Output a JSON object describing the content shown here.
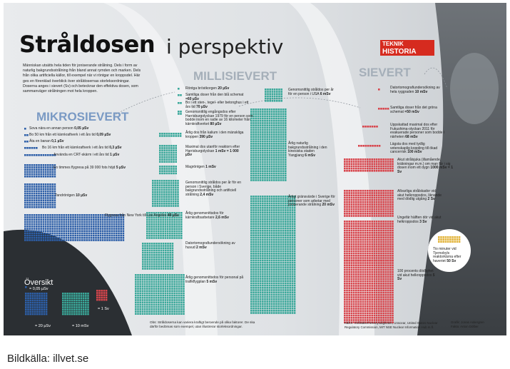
{
  "caption": "Bildkälla: illvet.se",
  "title": {
    "main": "Stråldosen",
    "sub": "i perspektiv"
  },
  "logo": {
    "line1": "TEKNIK",
    "line2": "HISTORIA"
  },
  "intro": "Människan utsätts hela tiden för joniserande strålning. Dels i form av naturlig bakgrundsstrålning från bland annat rymden och marken. Dels från olika artificiella källor, till exempel när vi röntgar en kroppsdel. Här ges en förenklad överblick över stråldosernas storleksordningar. Doserna anges i sievert (Sv) och betecknar den effektiva dosen, som sammanväger strålningen mot hela kroppen.",
  "sections": {
    "mikro": "MIKROSIEVERT",
    "milli": "MILLISIEVERT",
    "sievert": "SIEVERT"
  },
  "colors": {
    "mikro": "#2d5fa8",
    "milli": "#3aa89a",
    "sievert": "#d8454c",
    "gold": "#e2b43a",
    "dark": "#2b2f33"
  },
  "overview": {
    "title": "Översikt",
    "items": [
      {
        "label": "= 0,05 µSv"
      },
      {
        "label": "= 20 µSv"
      },
      {
        "label": "= 10 mSv"
      },
      {
        "label": "= 1 Sv"
      }
    ]
  },
  "chart_data": {
    "type": "table",
    "units": "sievert",
    "title": "Stråldosen i perspektiv",
    "groups": [
      {
        "name": "MIKROSIEVERT",
        "items": [
          {
            "text": "Sova nära en annan person",
            "value_text": "0,05 µSv",
            "value": 0.05,
            "unit": "µSv"
          },
          {
            "text": "Bo 50 km från ett kärnkraftverk i ett års tid",
            "value_text": "0,09 µSv",
            "value": 0.09,
            "unit": "µSv"
          },
          {
            "text": "Äta en banan",
            "value_text": "0,1 µSv",
            "value": 0.1,
            "unit": "µSv"
          },
          {
            "text": "Bo 16 km från ett kärnkraftverk i ett års tid",
            "value_text": "0,3 µSv",
            "value": 0.3,
            "unit": "µSv"
          },
          {
            "text": "Använda en CRT-skärm i ett års tid",
            "value_text": "1 µSv",
            "value": 1,
            "unit": "µSv"
          },
          {
            "text": "En timmes flygresa på 39 000 fots höjd",
            "value_text": "5 µSv",
            "value": 5,
            "unit": "µSv"
          },
          {
            "text": "Tandröntgen",
            "value_text": "10 µSv",
            "value": 10,
            "unit": "µSv"
          },
          {
            "text": "Flygresa från New York till Los Angeles",
            "value_text": "40 µSv",
            "value": 40,
            "unit": "µSv"
          }
        ]
      },
      {
        "name": "MILLISIEVERT",
        "items": [
          {
            "text": "Röntga bröstkorgen",
            "value_text": "20 µSv",
            "value": 20,
            "unit": "µSv"
          },
          {
            "text": "Samtliga doser från den blå schemat",
            "value_text": "=60 µSv",
            "value": 60,
            "unit": "µSv"
          },
          {
            "text": "Bo i ett sten-, tegel- eller betonghus i ett års tid",
            "value_text": "70 µSv",
            "value": 70,
            "unit": "µSv"
          },
          {
            "text": "Genomsnittlig engångsdos efter Harrisburgolyckan 1979 för en person som bodde inom en radie av 16 kilometer från kärnkraftverket",
            "value_text": "80 µSv",
            "value": 80,
            "unit": "µSv"
          },
          {
            "text": "Årlig dos från kalium i den mänskliga kroppen",
            "value_text": "390 µSv",
            "value": 390,
            "unit": "µSv"
          },
          {
            "text": "Maximal dos utanför reaktorn efter Harrisburgolyckan",
            "value_text": "1 mSv = 1 000 µSv",
            "value": 1,
            "unit": "mSv"
          },
          {
            "text": "Magröntgen",
            "value_text": "1 mSv",
            "value": 1,
            "unit": "mSv"
          },
          {
            "text": "Genomsnittlig stråldos per år för en person i Sverige, både bakgrundsstrålning och artificiell strålning",
            "value_text": "2,4 mSv",
            "value": 2.4,
            "unit": "mSv"
          },
          {
            "text": "Årlig genomsnittsdos för kärnkraftsarbetare",
            "value_text": "2,6 mSv",
            "value": 2.6,
            "unit": "mSv"
          },
          {
            "text": "Datortomografiundersökning av huvud",
            "value_text": "2 mSv",
            "value": 2,
            "unit": "mSv"
          },
          {
            "text": "Årlig genomsnittsdos för personal på trafikflygplan",
            "value_text": "5 mSv",
            "value": 5,
            "unit": "mSv"
          },
          {
            "text": "Genomsnittlig stråldos per år för en person i USA",
            "value_text": "6 mSv",
            "value": 6,
            "unit": "mSv"
          },
          {
            "text": "Årlig naturlig bakgrundsstrålning i den kinesiska staden Yangjiang",
            "value_text": "6 mSv",
            "value": 6,
            "unit": "mSv"
          },
          {
            "text": "Årligt gränsvärde i Sverige för personer som arbetar med joniserande strålning",
            "value_text": "20 mSv",
            "value": 20,
            "unit": "mSv"
          }
        ]
      },
      {
        "name": "SIEVERT",
        "items": [
          {
            "text": "Datortomografiundersökning av hela ryggraden",
            "value_text": "10 mSv",
            "value": 10,
            "unit": "mSv"
          },
          {
            "text": "Samtliga doser från det gröna schemat",
            "value_text": "=50 mSv",
            "value": 50,
            "unit": "mSv"
          },
          {
            "text": "Uppskattad maximal dos efter Fukushima-olyckan 2011 för evakuerade personer som bodde i närheten",
            "value_text": "68 mSv",
            "value": 68,
            "unit": "mSv"
          },
          {
            "text": "Lägsta dos med tydlig vetenskaplig koppling till ökad cancerrisk",
            "value_text": "100 mSv",
            "value": 100,
            "unit": "mSv"
          },
          {
            "text": "Akut strålsjuka (illamående, kräkningar m.m.) om man får i sig dosen inom ett dygn",
            "value_text": "1000 mSv = 1 Sv",
            "value": 1,
            "unit": "Sv"
          },
          {
            "text": "Allvarliga strålskador vid akut helkroppsdos, liknande med dödlig utgång",
            "value_text": "2 Sv",
            "value": 2,
            "unit": "Sv"
          },
          {
            "text": "Ungefär hälften dör vid akut helkroppsdos",
            "value_text": "3 Sv",
            "value": 3,
            "unit": "Sv"
          },
          {
            "text": "Tio minuter vid Tjernobyls reaktorkärna efter haveriet",
            "value_text": "50 Sv",
            "value": 50,
            "unit": "Sv"
          },
          {
            "text": "100 procents dödlighet vid akut helkroppsdos",
            "value_text": "5 Sv",
            "value": 5,
            "unit": "Sv"
          }
        ]
      }
    ]
  },
  "footnotes": {
    "note": "Obs: Stråldoserna kan variera kraftigt beroende på olika faktorer. De ska därför bedömas som exempel, utan illustrerar storleksordningar.",
    "sources": "Källor: Strålsäkerhetsmyndigheten, Unscear, United States Nuclear Regulatory Commission, MIT NSE Nuclear Information Hub m.fl.",
    "credits": "Grafik: Jonas Askergren Fakta: Anton Dölber"
  }
}
